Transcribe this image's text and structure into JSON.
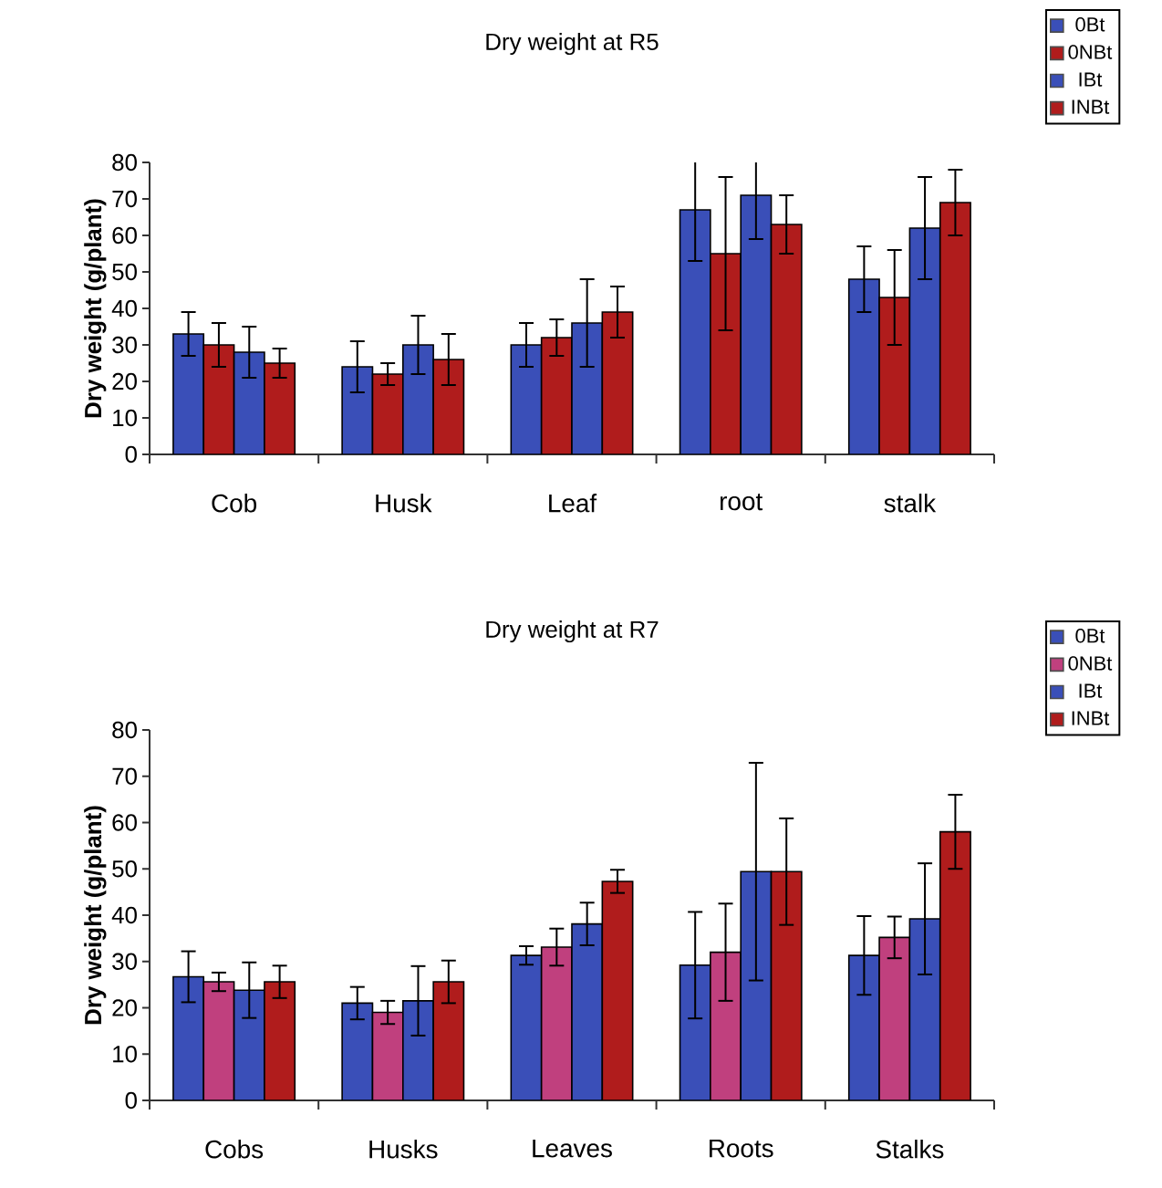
{
  "chart_data": [
    {
      "type": "bar",
      "title": "Dry weight at R5",
      "ylabel": "Dry weight (g/plant)",
      "categories": [
        "Cob",
        "Husk",
        "Leaf",
        "root",
        "stalk"
      ],
      "ylim": [
        0,
        80
      ],
      "yticks": [
        0,
        10,
        20,
        30,
        40,
        50,
        60,
        70,
        80
      ],
      "legend": "top right",
      "series": [
        {
          "name": "0Bt",
          "color": "#3a4fb8",
          "values": [
            33,
            24,
            30,
            67,
            48
          ],
          "errors": [
            6,
            7,
            6,
            14,
            9
          ]
        },
        {
          "name": "0NBt",
          "color": "#b01c1c",
          "values": [
            30,
            22,
            32,
            55,
            43
          ],
          "errors": [
            6,
            3,
            5,
            21,
            13
          ]
        },
        {
          "name": "IBt",
          "color": "#3a4fb8",
          "values": [
            28,
            30,
            36,
            71,
            62
          ],
          "errors": [
            7,
            8,
            12,
            12,
            14
          ]
        },
        {
          "name": "INBt",
          "color": "#b01c1c",
          "values": [
            25,
            26,
            39,
            63,
            69
          ],
          "errors": [
            4,
            7,
            7,
            8,
            9
          ]
        }
      ]
    },
    {
      "type": "bar",
      "title": "Dry weight at R7",
      "ylabel": "Dry weight (g/plant)",
      "categories": [
        "Cobs",
        "Husks",
        "Leaves",
        "Roots",
        "Stalks"
      ],
      "ylim": [
        0,
        80
      ],
      "yticks": [
        0,
        10,
        20,
        30,
        40,
        50,
        60,
        70,
        80
      ],
      "legend": "top right",
      "series": [
        {
          "name": "0Bt",
          "color": "#3a4fb8",
          "values": [
            26.7,
            21,
            31.3,
            29.2,
            31.3
          ],
          "errors": [
            5.5,
            3.5,
            2,
            11.5,
            8.5
          ]
        },
        {
          "name": "0NBt",
          "color": "#c0407e",
          "values": [
            25.6,
            19,
            33.1,
            32,
            35.2
          ],
          "errors": [
            2,
            2.5,
            4,
            10.5,
            4.5
          ]
        },
        {
          "name": "IBt",
          "color": "#3a4fb8",
          "values": [
            23.8,
            21.5,
            38.1,
            49.4,
            39.2
          ],
          "errors": [
            6,
            7.5,
            4.6,
            23.5,
            12
          ]
        },
        {
          "name": "INBt",
          "color": "#b01c1c",
          "values": [
            25.6,
            25.6,
            47.3,
            49.4,
            58
          ],
          "errors": [
            3.5,
            4.6,
            2.5,
            11.5,
            8
          ]
        }
      ]
    }
  ]
}
